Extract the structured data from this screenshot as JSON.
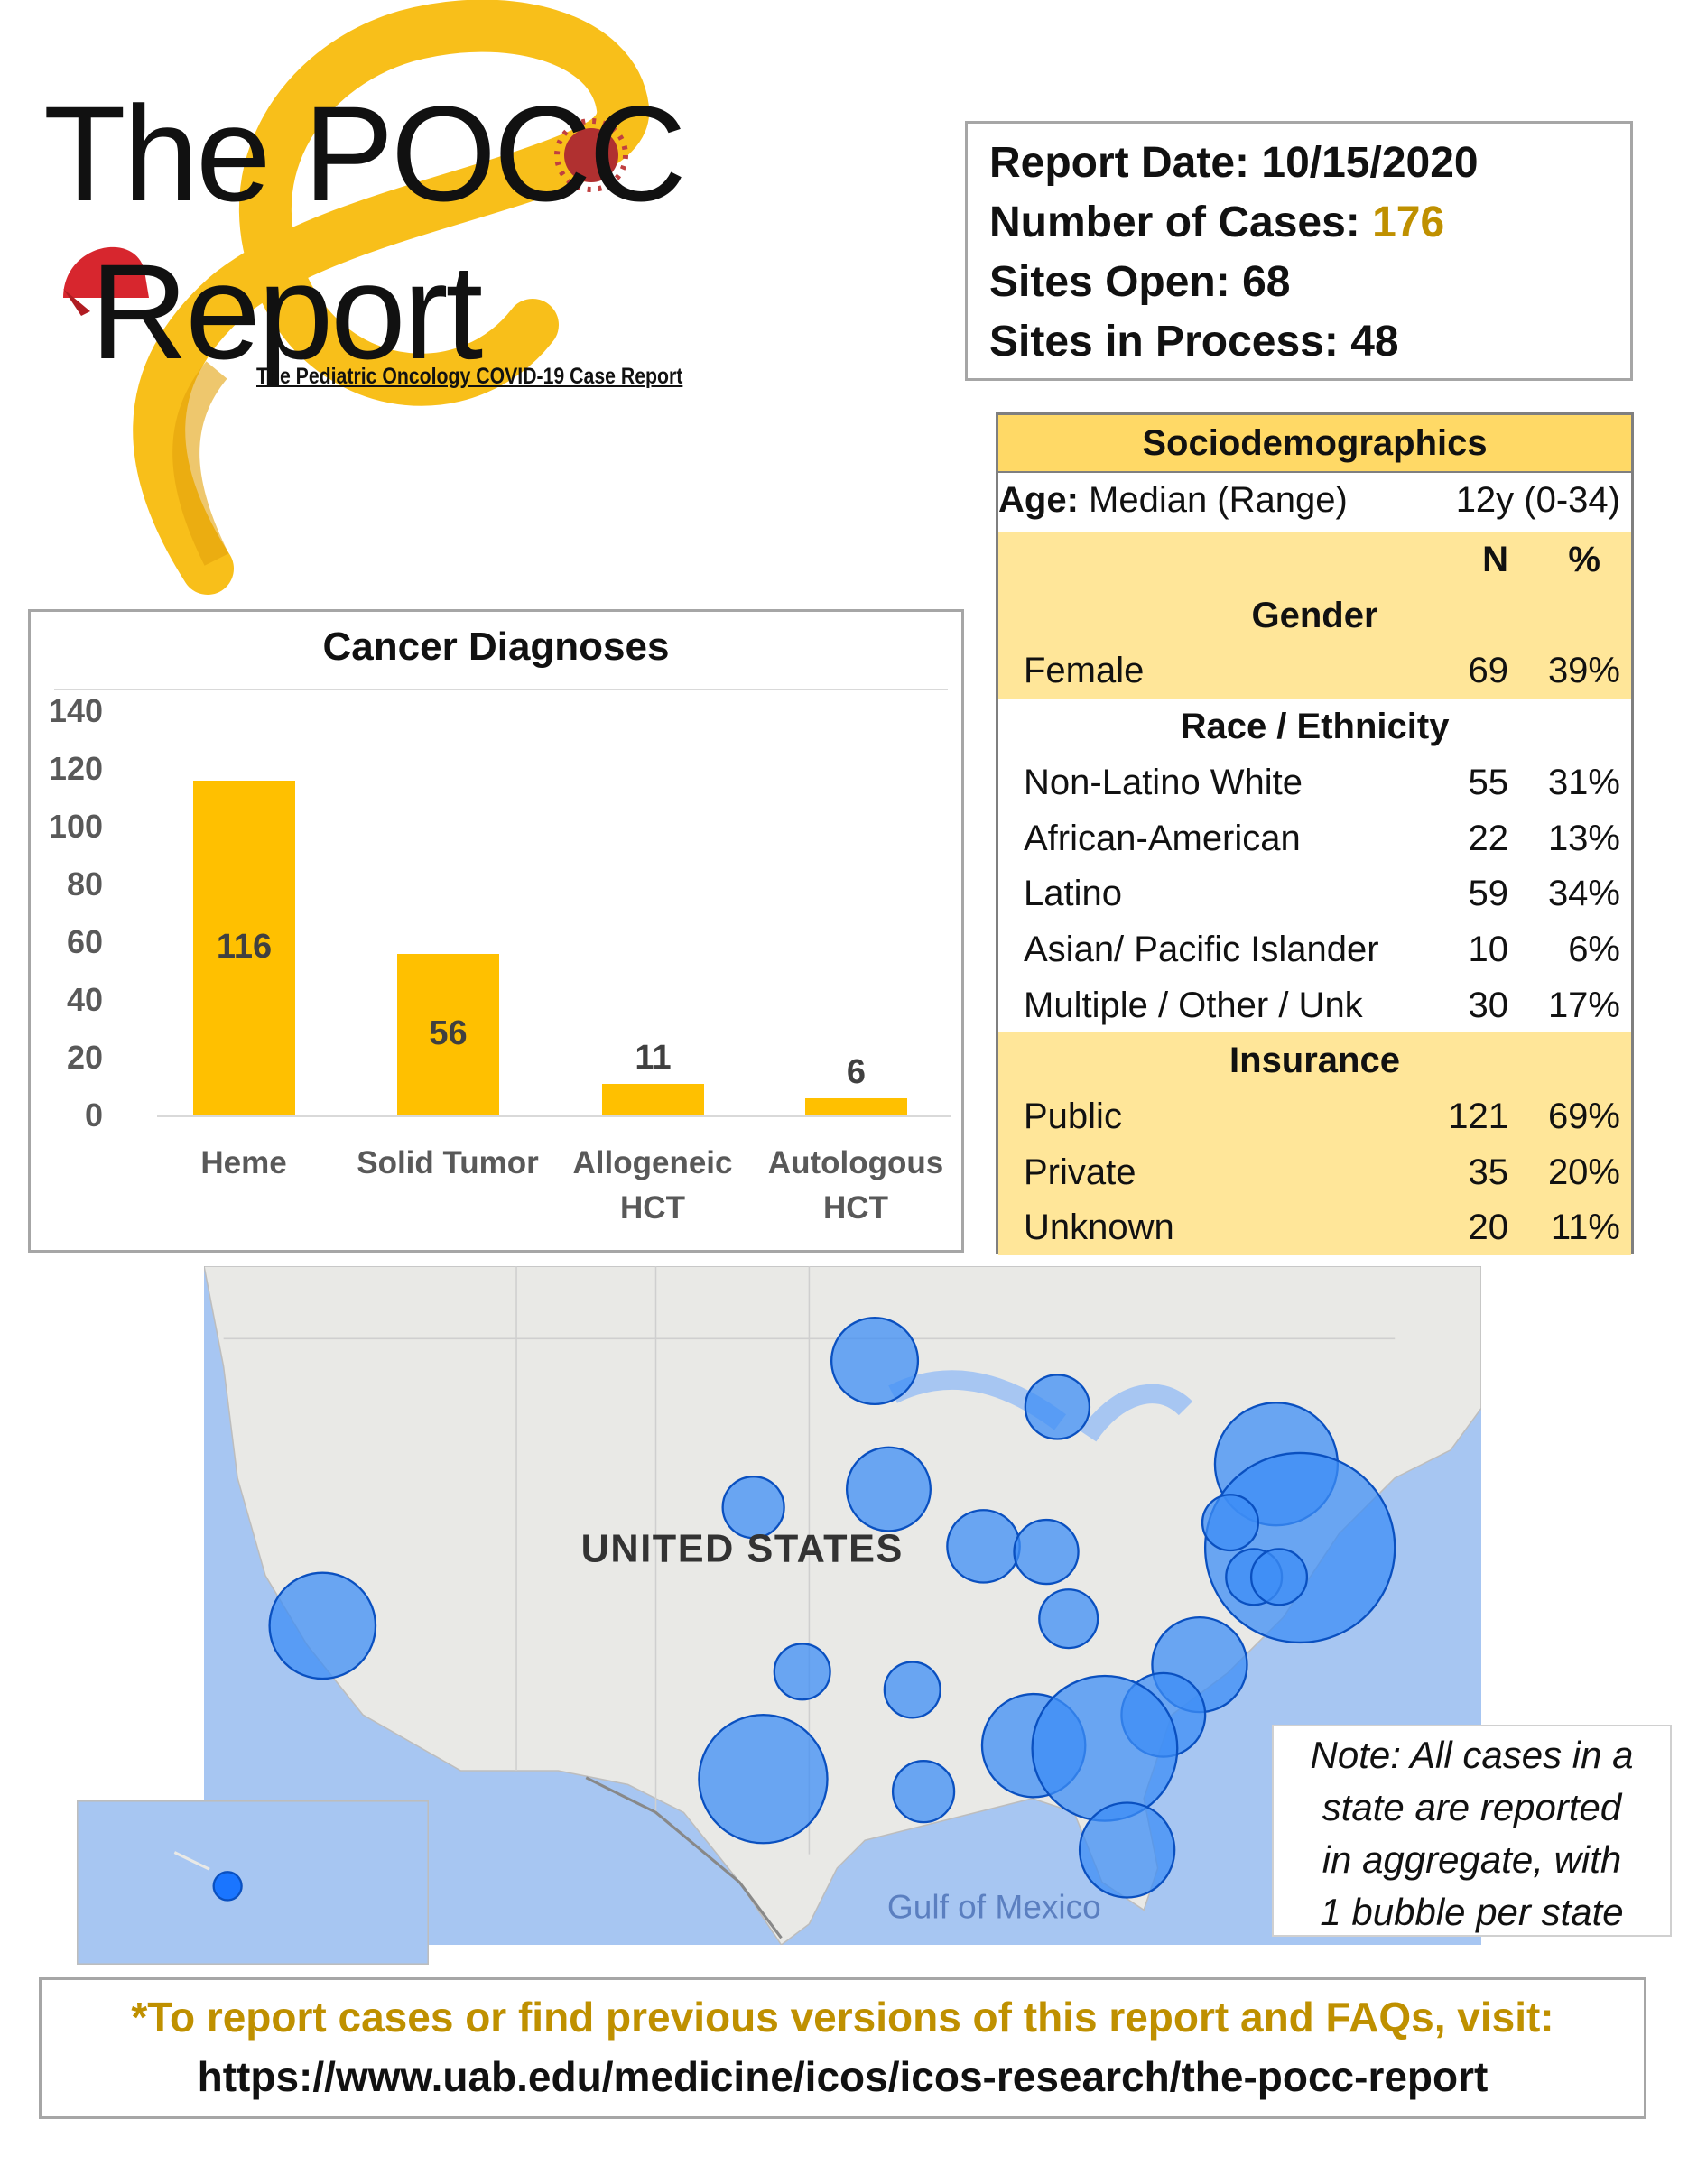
{
  "header": {
    "title_line1": "The POCC",
    "title_line2": "Report",
    "subtitle": "The Pediatric Oncology COVID-19 Case Report"
  },
  "report_info": [
    {
      "label": "Report Date:",
      "value": "10/15/2020"
    },
    {
      "label": "Number of Cases:",
      "value": "176"
    },
    {
      "label": "Sites Open:",
      "value": "68"
    },
    {
      "label": "Sites in Process:",
      "value": "48"
    }
  ],
  "chart_data": {
    "type": "bar",
    "title": "Cancer Diagnoses",
    "categories": [
      "Heme",
      "Solid Tumor",
      "Allogeneic HCT",
      "Autologous HCT"
    ],
    "values": [
      116,
      56,
      11,
      6
    ],
    "color": "#ffc000",
    "ylim": [
      0,
      140
    ],
    "yticks": [
      0,
      20,
      40,
      60,
      80,
      100,
      120,
      140
    ],
    "grid": false
  },
  "sociodemographics": {
    "title": "Sociodemographics",
    "age": {
      "label": "Age:",
      "measure": "Median (Range)",
      "value": "12y (0-34)"
    },
    "columns": [
      "N",
      "%"
    ],
    "sections": [
      {
        "title": "Gender",
        "rows": [
          [
            "Female",
            69,
            "39%"
          ]
        ]
      },
      {
        "title": "Race / Ethnicity",
        "rows": [
          [
            "Non-Latino White",
            55,
            "31%"
          ],
          [
            "African-American",
            22,
            "13%"
          ],
          [
            "Latino",
            59,
            "34%"
          ],
          [
            "Asian/ Pacific Islander",
            10,
            "6%"
          ],
          [
            "Multiple / Other / Unk",
            30,
            "17%"
          ]
        ]
      },
      {
        "title": "Insurance",
        "rows": [
          [
            "Public",
            121,
            "69%"
          ],
          [
            "Private",
            35,
            "20%"
          ],
          [
            "Unknown",
            20,
            "11%"
          ]
        ]
      }
    ]
  },
  "map": {
    "country_label": "UNITED STATES",
    "water_label": "Gulf of Mexico",
    "note": [
      "Note: All cases in a",
      "state are reported",
      "in aggregate, with",
      "1 bubble per state"
    ]
  },
  "footer": {
    "line1": "*To report cases or find previous versions of this report and FAQs, visit:",
    "line2": "https://www.uab.edu/medicine/icos/icos-research/the-pocc-report"
  }
}
